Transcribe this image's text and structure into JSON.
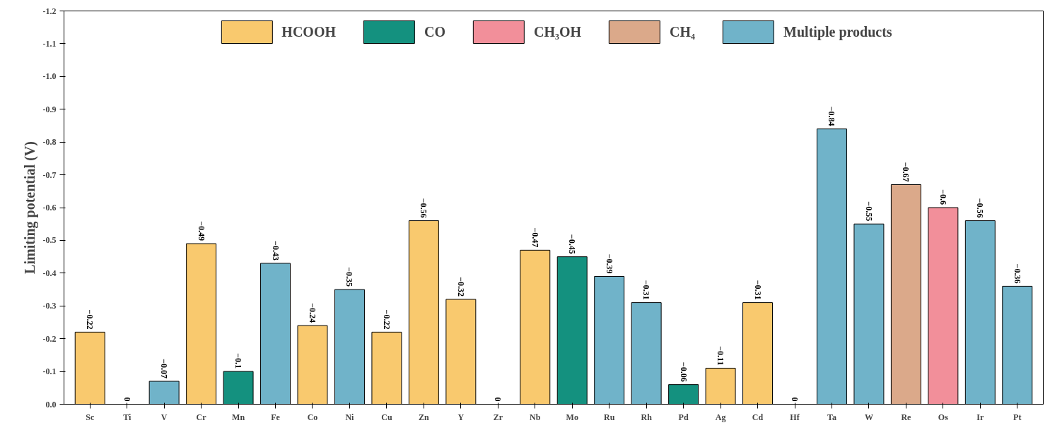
{
  "chart_data": {
    "type": "bar",
    "ylabel": "Limiting potential (V)",
    "categories": [
      "Sc",
      "Ti",
      "V",
      "Cr",
      "Mn",
      "Fe",
      "Co",
      "Ni",
      "Cu",
      "Zn",
      "Y",
      "Zr",
      "Nb",
      "Mo",
      "Ru",
      "Rh",
      "Pd",
      "Ag",
      "Cd",
      "Hf",
      "Ta",
      "W",
      "Re",
      "Os",
      "Ir",
      "Pt"
    ],
    "ylim": [
      0,
      -1.2
    ],
    "yticks": [
      {
        "value": 0,
        "label": "0.0"
      },
      {
        "value": -0.1,
        "label": "-0.1"
      },
      {
        "value": -0.2,
        "label": "-0.2"
      },
      {
        "value": -0.3,
        "label": "-0.3"
      },
      {
        "value": -0.4,
        "label": "-0.4"
      },
      {
        "value": -0.5,
        "label": "-0.5"
      },
      {
        "value": -0.6,
        "label": "-0.6"
      },
      {
        "value": -0.7,
        "label": "-0.7"
      },
      {
        "value": -0.8,
        "label": "-0.8"
      },
      {
        "value": -0.9,
        "label": "-0.9"
      },
      {
        "value": -1.0,
        "label": "-1.0"
      },
      {
        "value": -1.1,
        "label": "-1.1"
      },
      {
        "value": -1.2,
        "label": "-1.2"
      }
    ],
    "series": [
      {
        "name": "HCOOH",
        "color": "#f9c96e",
        "values": [
          -0.22,
          0,
          null,
          -0.49,
          null,
          null,
          -0.24,
          null,
          -0.22,
          -0.56,
          -0.32,
          0,
          -0.47,
          null,
          null,
          null,
          null,
          -0.11,
          -0.31,
          0,
          null,
          null,
          null,
          null,
          null,
          null
        ],
        "value_labels": [
          "−0.22",
          "0",
          null,
          "−0.49",
          null,
          null,
          "−0.24",
          null,
          "−0.22",
          "−0.56",
          "−0.32",
          "0",
          "−0.47",
          null,
          null,
          null,
          null,
          "−0.11",
          "−0.31",
          "0",
          null,
          null,
          null,
          null,
          null,
          null
        ]
      },
      {
        "name": "CO",
        "color": "#14917f",
        "values": [
          null,
          null,
          null,
          null,
          -0.1,
          null,
          null,
          null,
          null,
          null,
          null,
          null,
          null,
          -0.45,
          null,
          null,
          -0.06,
          null,
          null,
          null,
          null,
          null,
          null,
          null,
          null,
          null
        ],
        "value_labels": [
          null,
          null,
          null,
          null,
          "−0.1",
          null,
          null,
          null,
          null,
          null,
          null,
          null,
          null,
          "−0.45",
          null,
          null,
          "−0.06",
          null,
          null,
          null,
          null,
          null,
          null,
          null,
          null,
          null
        ]
      },
      {
        "name": "CH₃OH",
        "color": "#f28f9a",
        "values": [
          null,
          null,
          null,
          null,
          null,
          null,
          null,
          null,
          null,
          null,
          null,
          null,
          null,
          null,
          null,
          null,
          null,
          null,
          null,
          null,
          null,
          null,
          null,
          -0.6,
          null,
          null
        ],
        "value_labels": [
          null,
          null,
          null,
          null,
          null,
          null,
          null,
          null,
          null,
          null,
          null,
          null,
          null,
          null,
          null,
          null,
          null,
          null,
          null,
          null,
          null,
          null,
          null,
          "−0.6",
          null,
          null
        ]
      },
      {
        "name": "CH₄",
        "color": "#dba98a",
        "values": [
          null,
          null,
          null,
          null,
          null,
          null,
          null,
          null,
          null,
          null,
          null,
          null,
          null,
          null,
          null,
          null,
          null,
          null,
          null,
          null,
          null,
          null,
          -0.67,
          null,
          null,
          null
        ],
        "value_labels": [
          null,
          null,
          null,
          null,
          null,
          null,
          null,
          null,
          null,
          null,
          null,
          null,
          null,
          null,
          null,
          null,
          null,
          null,
          null,
          null,
          null,
          null,
          "−0.67",
          null,
          null,
          null
        ]
      },
      {
        "name": "Multiple products",
        "color": "#70b3c9",
        "values": [
          null,
          null,
          -0.07,
          null,
          null,
          -0.43,
          null,
          -0.35,
          null,
          null,
          null,
          null,
          null,
          null,
          -0.39,
          -0.31,
          null,
          null,
          null,
          null,
          -0.84,
          -0.55,
          null,
          null,
          -0.56,
          -0.36
        ],
        "value_labels": [
          null,
          null,
          "−0.07",
          null,
          null,
          "−0.43",
          null,
          "−0.35",
          null,
          null,
          null,
          null,
          null,
          null,
          "−0.39",
          "−0.31",
          null,
          null,
          null,
          null,
          "−0.84",
          "−0.55",
          null,
          null,
          "−0.56",
          "−0.36"
        ]
      }
    ],
    "legend": "top",
    "grid": false
  }
}
